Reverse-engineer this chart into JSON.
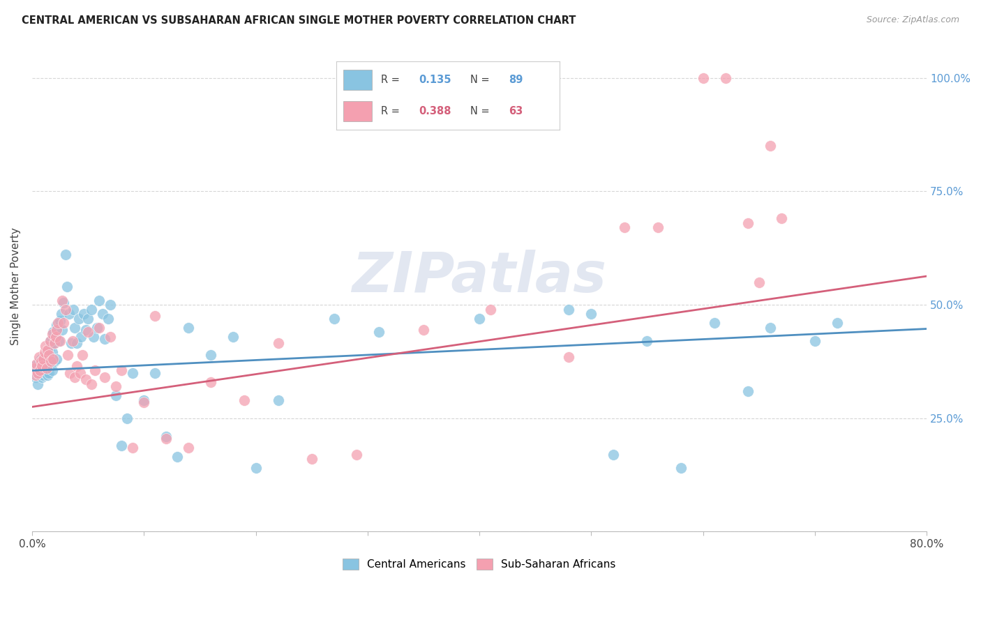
{
  "title": "CENTRAL AMERICAN VS SUBSAHARAN AFRICAN SINGLE MOTHER POVERTY CORRELATION CHART",
  "source": "Source: ZipAtlas.com",
  "ylabel": "Single Mother Poverty",
  "legend_label_blue": "Central Americans",
  "legend_label_pink": "Sub-Saharan Africans",
  "watermark": "ZIPatlas",
  "blue_color": "#89c4e1",
  "pink_color": "#f4a0b0",
  "blue_line_color": "#4f8fc0",
  "pink_line_color": "#d45f7a",
  "blue_intercept": 0.355,
  "blue_slope": 0.115,
  "pink_intercept": 0.275,
  "pink_slope": 0.36,
  "blue_scatter_x": [
    0.002,
    0.003,
    0.004,
    0.005,
    0.005,
    0.006,
    0.006,
    0.007,
    0.007,
    0.008,
    0.008,
    0.009,
    0.009,
    0.01,
    0.01,
    0.011,
    0.011,
    0.012,
    0.012,
    0.013,
    0.013,
    0.014,
    0.014,
    0.015,
    0.015,
    0.016,
    0.016,
    0.017,
    0.017,
    0.018,
    0.018,
    0.019,
    0.02,
    0.02,
    0.021,
    0.022,
    0.022,
    0.023,
    0.024,
    0.025,
    0.026,
    0.027,
    0.028,
    0.03,
    0.031,
    0.033,
    0.035,
    0.037,
    0.038,
    0.04,
    0.042,
    0.044,
    0.046,
    0.048,
    0.05,
    0.053,
    0.055,
    0.058,
    0.06,
    0.063,
    0.065,
    0.068,
    0.07,
    0.075,
    0.08,
    0.085,
    0.09,
    0.1,
    0.11,
    0.12,
    0.13,
    0.14,
    0.16,
    0.18,
    0.2,
    0.22,
    0.27,
    0.31,
    0.4,
    0.48,
    0.5,
    0.52,
    0.55,
    0.58,
    0.61,
    0.64,
    0.66,
    0.7,
    0.72
  ],
  "blue_scatter_y": [
    0.365,
    0.34,
    0.35,
    0.36,
    0.325,
    0.355,
    0.375,
    0.345,
    0.365,
    0.35,
    0.38,
    0.34,
    0.36,
    0.37,
    0.345,
    0.365,
    0.385,
    0.35,
    0.375,
    0.36,
    0.395,
    0.345,
    0.37,
    0.38,
    0.35,
    0.42,
    0.365,
    0.41,
    0.38,
    0.395,
    0.355,
    0.44,
    0.415,
    0.375,
    0.43,
    0.455,
    0.38,
    0.45,
    0.42,
    0.465,
    0.48,
    0.445,
    0.505,
    0.61,
    0.54,
    0.48,
    0.415,
    0.49,
    0.45,
    0.415,
    0.47,
    0.43,
    0.48,
    0.445,
    0.47,
    0.49,
    0.43,
    0.45,
    0.51,
    0.48,
    0.425,
    0.47,
    0.5,
    0.3,
    0.19,
    0.25,
    0.35,
    0.29,
    0.35,
    0.21,
    0.165,
    0.45,
    0.39,
    0.43,
    0.14,
    0.29,
    0.47,
    0.44,
    0.47,
    0.49,
    0.48,
    0.17,
    0.42,
    0.14,
    0.46,
    0.31,
    0.45,
    0.42,
    0.46
  ],
  "pink_scatter_x": [
    0.002,
    0.003,
    0.004,
    0.005,
    0.006,
    0.007,
    0.008,
    0.009,
    0.01,
    0.011,
    0.012,
    0.013,
    0.014,
    0.015,
    0.016,
    0.017,
    0.018,
    0.019,
    0.02,
    0.021,
    0.022,
    0.023,
    0.025,
    0.027,
    0.028,
    0.03,
    0.032,
    0.034,
    0.036,
    0.038,
    0.04,
    0.043,
    0.045,
    0.048,
    0.05,
    0.053,
    0.056,
    0.06,
    0.065,
    0.07,
    0.075,
    0.08,
    0.09,
    0.1,
    0.11,
    0.12,
    0.14,
    0.16,
    0.19,
    0.22,
    0.25,
    0.29,
    0.35,
    0.41,
    0.48,
    0.53,
    0.56,
    0.6,
    0.62,
    0.64,
    0.65,
    0.66,
    0.67
  ],
  "pink_scatter_y": [
    0.36,
    0.345,
    0.37,
    0.35,
    0.385,
    0.355,
    0.375,
    0.365,
    0.38,
    0.395,
    0.41,
    0.36,
    0.4,
    0.39,
    0.42,
    0.375,
    0.435,
    0.38,
    0.415,
    0.43,
    0.445,
    0.46,
    0.42,
    0.51,
    0.46,
    0.49,
    0.39,
    0.35,
    0.42,
    0.34,
    0.365,
    0.35,
    0.39,
    0.335,
    0.44,
    0.325,
    0.355,
    0.45,
    0.34,
    0.43,
    0.32,
    0.355,
    0.185,
    0.285,
    0.475,
    0.205,
    0.185,
    0.33,
    0.29,
    0.415,
    0.16,
    0.17,
    0.445,
    0.49,
    0.385,
    0.67,
    0.67,
    1.0,
    1.0,
    0.68,
    0.55,
    0.85,
    0.69
  ]
}
